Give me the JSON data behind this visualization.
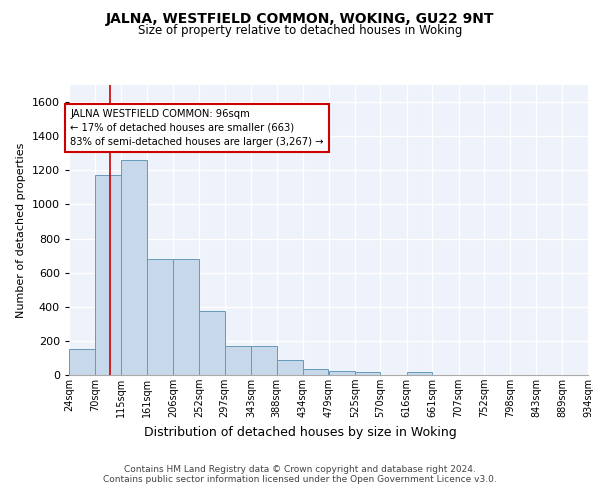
{
  "title": "JALNA, WESTFIELD COMMON, WOKING, GU22 9NT",
  "subtitle": "Size of property relative to detached houses in Woking",
  "xlabel": "Distribution of detached houses by size in Woking",
  "ylabel": "Number of detached properties",
  "bar_color": "#c8d8eb",
  "bar_edge_color": "#6699bb",
  "background_color": "#eef2fa",
  "grid_color": "#ffffff",
  "vline_x": 96,
  "vline_color": "#cc0000",
  "bin_edges": [
    24,
    70,
    115,
    161,
    206,
    252,
    297,
    343,
    388,
    434,
    479,
    525,
    570,
    616,
    661,
    707,
    752,
    798,
    843,
    889,
    934
  ],
  "bin_labels": [
    "24sqm",
    "70sqm",
    "115sqm",
    "161sqm",
    "206sqm",
    "252sqm",
    "297sqm",
    "343sqm",
    "388sqm",
    "434sqm",
    "479sqm",
    "525sqm",
    "570sqm",
    "616sqm",
    "661sqm",
    "707sqm",
    "752sqm",
    "798sqm",
    "843sqm",
    "889sqm",
    "934sqm"
  ],
  "bar_heights": [
    150,
    1175,
    1260,
    680,
    680,
    375,
    170,
    170,
    90,
    35,
    25,
    20,
    0,
    15,
    0,
    0,
    0,
    0,
    0,
    0
  ],
  "ylim": [
    0,
    1700
  ],
  "yticks": [
    0,
    200,
    400,
    600,
    800,
    1000,
    1200,
    1400,
    1600
  ],
  "annotation_title": "JALNA WESTFIELD COMMON: 96sqm",
  "annotation_line1": "← 17% of detached houses are smaller (663)",
  "annotation_line2": "83% of semi-detached houses are larger (3,267) →",
  "footnote1": "Contains HM Land Registry data © Crown copyright and database right 2024.",
  "footnote2": "Contains public sector information licensed under the Open Government Licence v3.0."
}
